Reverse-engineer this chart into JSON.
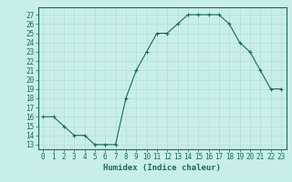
{
  "x": [
    0,
    1,
    2,
    3,
    4,
    5,
    6,
    7,
    8,
    9,
    10,
    11,
    12,
    13,
    14,
    15,
    16,
    17,
    18,
    19,
    20,
    21,
    22,
    23
  ],
  "y": [
    16,
    16,
    15,
    14,
    14,
    13,
    13,
    13,
    18,
    21,
    23,
    25,
    25,
    26,
    27,
    27,
    27,
    27,
    26,
    24,
    23,
    21,
    19,
    19
  ],
  "line_color": "#1a6b5a",
  "marker": "+",
  "bg_color": "#c8eee8",
  "grid_color": "#b5ddd6",
  "xlabel": "Humidex (Indice chaleur)",
  "ylabel_ticks": [
    13,
    14,
    15,
    16,
    17,
    18,
    19,
    20,
    21,
    22,
    23,
    24,
    25,
    26,
    27
  ],
  "ylim": [
    12.5,
    27.8
  ],
  "xlim": [
    -0.5,
    23.5
  ],
  "xticks": [
    0,
    1,
    2,
    3,
    4,
    5,
    6,
    7,
    8,
    9,
    10,
    11,
    12,
    13,
    14,
    15,
    16,
    17,
    18,
    19,
    20,
    21,
    22,
    23
  ],
  "axis_fontsize": 5.5,
  "label_fontsize": 6.5
}
